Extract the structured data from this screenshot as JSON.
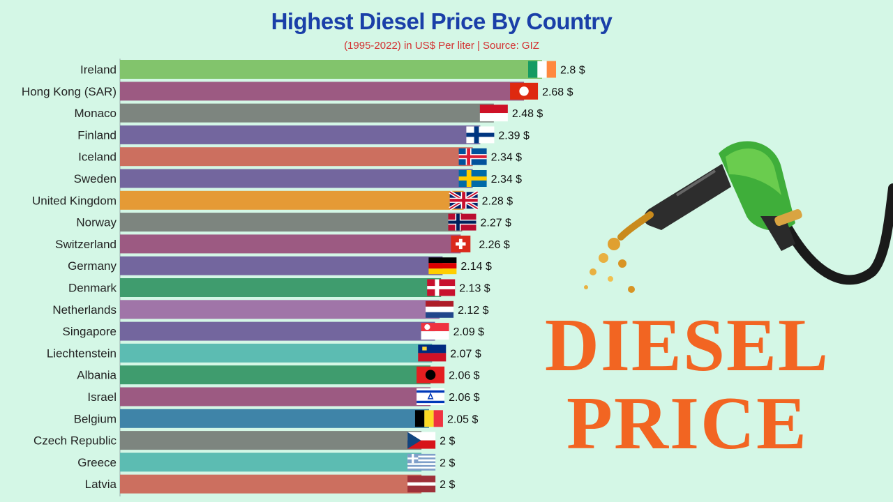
{
  "chart_data": {
    "type": "bar",
    "orientation": "horizontal",
    "title": "Highest Diesel Price By Country",
    "subtitle": "(1995-2022) in US$ Per liter | Source: GIZ",
    "unit_suffix": " $",
    "xlim": [
      0,
      2.8
    ],
    "categories": [
      "Ireland",
      "Hong Kong (SAR)",
      "Monaco",
      "Finland",
      "Iceland",
      "Sweden",
      "United Kingdom",
      "Norway",
      "Switzerland",
      "Germany",
      "Denmark",
      "Netherlands",
      "Singapore",
      "Liechtenstein",
      "Albania",
      "Israel",
      "Belgium",
      "Czech Republic",
      "Greece",
      "Latvia"
    ],
    "values": [
      2.8,
      2.68,
      2.48,
      2.39,
      2.34,
      2.34,
      2.28,
      2.27,
      2.26,
      2.14,
      2.13,
      2.12,
      2.09,
      2.07,
      2.06,
      2.06,
      2.05,
      2,
      2,
      2
    ],
    "value_labels": [
      "2.8 $",
      "2.68 $",
      "2.48 $",
      "2.39 $",
      "2.34 $",
      "2.34 $",
      "2.28 $",
      "2.27 $",
      "2.26 $",
      "2.14 $",
      "2.13 $",
      "2.12 $",
      "2.09 $",
      "2.07 $",
      "2.06 $",
      "2.06 $",
      "2.05 $",
      "2 $",
      "2 $",
      "2 $"
    ],
    "bar_colors": [
      "#82c46c",
      "#9c5a82",
      "#7d857f",
      "#73669e",
      "#cc6f5f",
      "#73669e",
      "#e59a35",
      "#7d857f",
      "#9c5a82",
      "#73669e",
      "#3f9c6e",
      "#a075a8",
      "#73669e",
      "#5cbcb2",
      "#3f9c6e",
      "#9c5a82",
      "#3f84a8",
      "#7d857f",
      "#5cbcb2",
      "#cc6f5f"
    ],
    "flags": [
      "ireland-flag",
      "hong-kong-flag",
      "monaco-flag",
      "finland-flag",
      "iceland-flag",
      "sweden-flag",
      "united-kingdom-flag",
      "norway-flag",
      "switzerland-flag",
      "germany-flag",
      "denmark-flag",
      "netherlands-flag",
      "singapore-flag",
      "liechtenstein-flag",
      "albania-flag",
      "israel-flag",
      "belgium-flag",
      "czech-republic-flag",
      "greece-flag",
      "latvia-flag"
    ]
  },
  "overlay": {
    "line1": "DIESEL",
    "line2": "PRICE",
    "text_color": "#f26522",
    "pump_icon": "fuel-nozzle-icon"
  }
}
